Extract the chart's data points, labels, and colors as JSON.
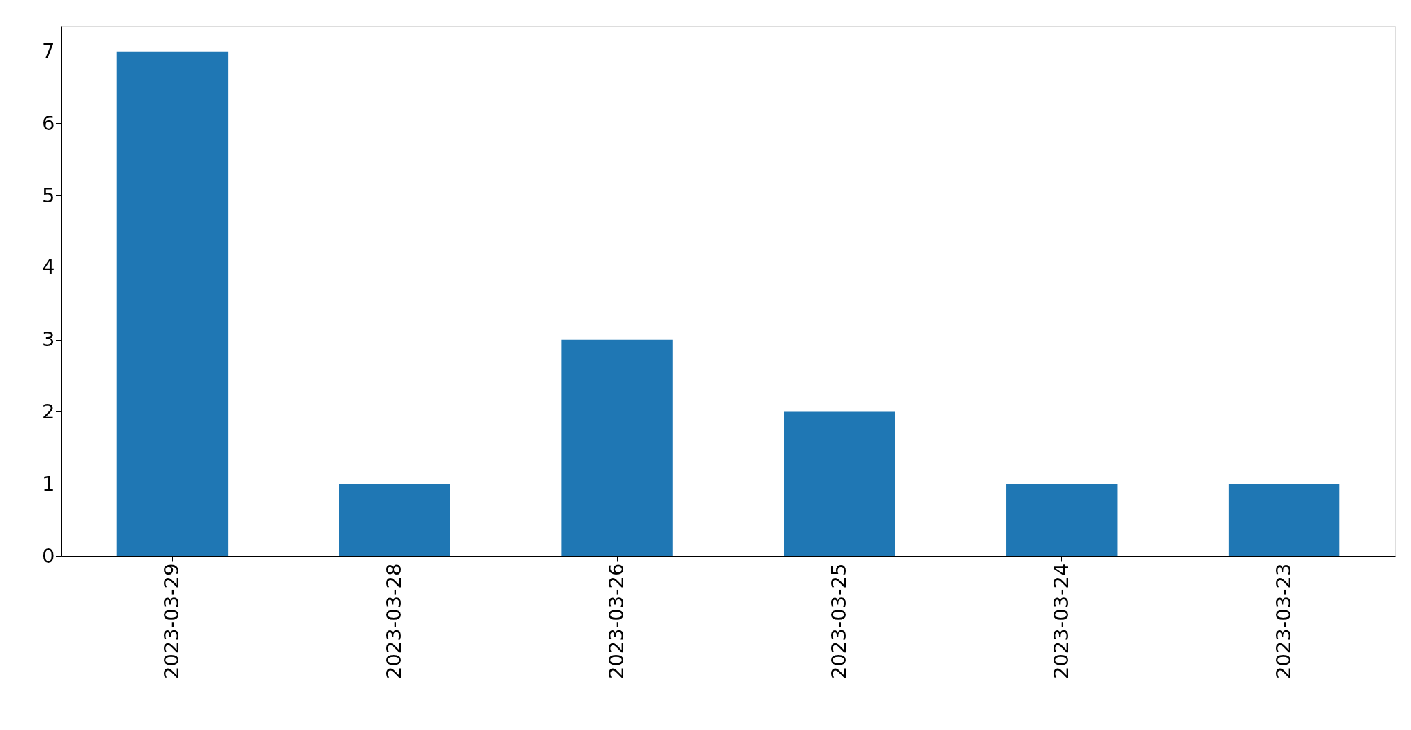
{
  "chart_data": {
    "type": "bar",
    "categories": [
      "2023-03-29",
      "2023-03-28",
      "2023-03-26",
      "2023-03-25",
      "2023-03-24",
      "2023-03-23"
    ],
    "values": [
      7,
      1,
      3,
      2,
      1,
      1
    ],
    "color": "#1f77b4",
    "ylim": [
      0,
      7.35
    ],
    "yticks": [
      0,
      1,
      2,
      3,
      4,
      5,
      6,
      7
    ],
    "grid": false
  }
}
